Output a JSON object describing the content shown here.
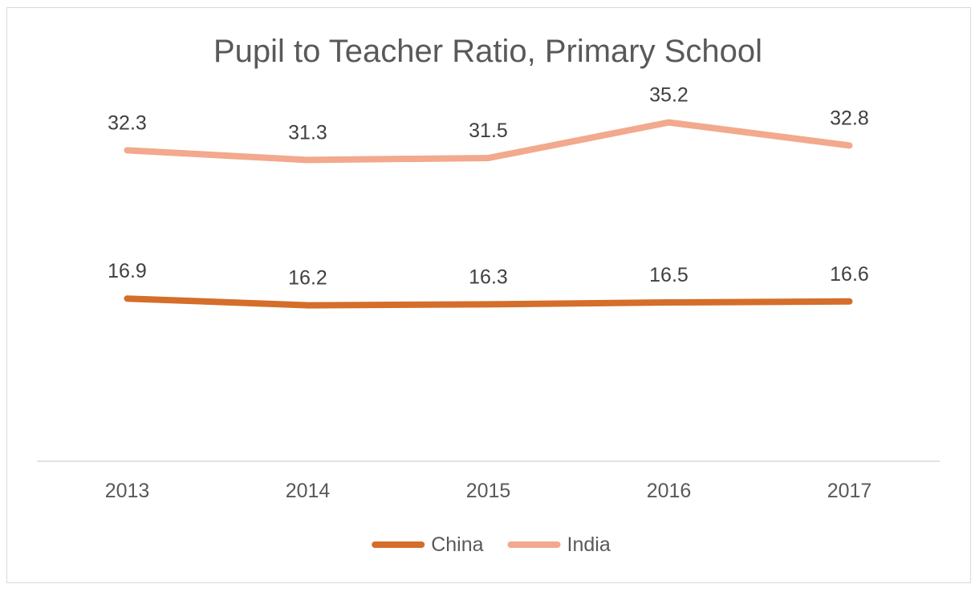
{
  "chart_data": {
    "type": "line",
    "title": "Pupil to Teacher Ratio, Primary School",
    "xlabel": "",
    "ylabel": "",
    "categories": [
      "2013",
      "2014",
      "2015",
      "2016",
      "2017"
    ],
    "series": [
      {
        "name": "China",
        "values": [
          16.9,
          16.2,
          16.3,
          16.5,
          16.6
        ],
        "labels": [
          "16.9",
          "16.2",
          "16.3",
          "16.5",
          "16.6"
        ],
        "color": "#D46E2A"
      },
      {
        "name": "India",
        "values": [
          32.3,
          31.3,
          31.5,
          35.2,
          32.8
        ],
        "labels": [
          "32.3",
          "31.3",
          "31.5",
          "35.2",
          "32.8"
        ],
        "color": "#F2A98D"
      }
    ],
    "ylim": [
      0,
      40
    ],
    "grid": false,
    "y_axis_visible": false,
    "data_labels": true,
    "legend_position": "bottom"
  }
}
